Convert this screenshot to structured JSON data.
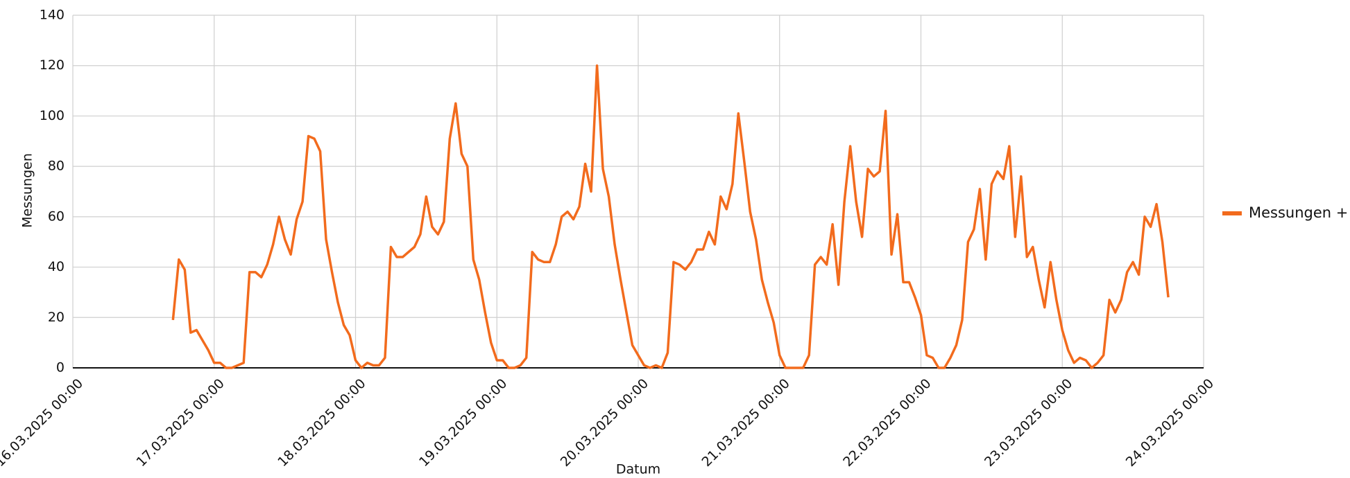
{
  "chart_data": {
    "type": "line",
    "x_label": "Datum",
    "y_label": "Messungen",
    "x": [
      "16.03.2025 17:00",
      "16.03.2025 18:00",
      "16.03.2025 19:00",
      "16.03.2025 20:00",
      "16.03.2025 21:00",
      "16.03.2025 22:00",
      "16.03.2025 23:00",
      "17.03.2025 00:00",
      "17.03.2025 01:00",
      "17.03.2025 02:00",
      "17.03.2025 03:00",
      "17.03.2025 04:00",
      "17.03.2025 05:00",
      "17.03.2025 06:00",
      "17.03.2025 07:00",
      "17.03.2025 08:00",
      "17.03.2025 09:00",
      "17.03.2025 10:00",
      "17.03.2025 11:00",
      "17.03.2025 12:00",
      "17.03.2025 13:00",
      "17.03.2025 14:00",
      "17.03.2025 15:00",
      "17.03.2025 16:00",
      "17.03.2025 17:00",
      "17.03.2025 18:00",
      "17.03.2025 19:00",
      "17.03.2025 20:00",
      "17.03.2025 21:00",
      "17.03.2025 22:00",
      "17.03.2025 23:00",
      "18.03.2025 00:00",
      "18.03.2025 01:00",
      "18.03.2025 02:00",
      "18.03.2025 03:00",
      "18.03.2025 04:00",
      "18.03.2025 05:00",
      "18.03.2025 06:00",
      "18.03.2025 07:00",
      "18.03.2025 08:00",
      "18.03.2025 09:00",
      "18.03.2025 10:00",
      "18.03.2025 11:00",
      "18.03.2025 12:00",
      "18.03.2025 13:00",
      "18.03.2025 14:00",
      "18.03.2025 15:00",
      "18.03.2025 16:00",
      "18.03.2025 17:00",
      "18.03.2025 18:00",
      "18.03.2025 19:00",
      "18.03.2025 20:00",
      "18.03.2025 21:00",
      "18.03.2025 22:00",
      "18.03.2025 23:00",
      "19.03.2025 00:00",
      "19.03.2025 01:00",
      "19.03.2025 02:00",
      "19.03.2025 03:00",
      "19.03.2025 04:00",
      "19.03.2025 05:00",
      "19.03.2025 06:00",
      "19.03.2025 07:00",
      "19.03.2025 08:00",
      "19.03.2025 09:00",
      "19.03.2025 10:00",
      "19.03.2025 11:00",
      "19.03.2025 12:00",
      "19.03.2025 13:00",
      "19.03.2025 14:00",
      "19.03.2025 15:00",
      "19.03.2025 16:00",
      "19.03.2025 17:00",
      "19.03.2025 18:00",
      "19.03.2025 19:00",
      "19.03.2025 20:00",
      "19.03.2025 21:00",
      "19.03.2025 22:00",
      "19.03.2025 23:00",
      "20.03.2025 00:00",
      "20.03.2025 01:00",
      "20.03.2025 02:00",
      "20.03.2025 03:00",
      "20.03.2025 04:00",
      "20.03.2025 05:00",
      "20.03.2025 06:00",
      "20.03.2025 07:00",
      "20.03.2025 08:00",
      "20.03.2025 09:00",
      "20.03.2025 10:00",
      "20.03.2025 11:00",
      "20.03.2025 12:00",
      "20.03.2025 13:00",
      "20.03.2025 14:00",
      "20.03.2025 15:00",
      "20.03.2025 16:00",
      "20.03.2025 17:00",
      "20.03.2025 18:00",
      "20.03.2025 19:00",
      "20.03.2025 20:00",
      "20.03.2025 21:00",
      "20.03.2025 22:00",
      "20.03.2025 23:00",
      "21.03.2025 00:00",
      "21.03.2025 01:00",
      "21.03.2025 02:00",
      "21.03.2025 03:00",
      "21.03.2025 04:00",
      "21.03.2025 05:00",
      "21.03.2025 06:00",
      "21.03.2025 07:00",
      "21.03.2025 08:00",
      "21.03.2025 09:00",
      "21.03.2025 10:00",
      "21.03.2025 11:00",
      "21.03.2025 12:00",
      "21.03.2025 13:00",
      "21.03.2025 14:00",
      "21.03.2025 15:00",
      "21.03.2025 16:00",
      "21.03.2025 17:00",
      "21.03.2025 18:00",
      "21.03.2025 19:00",
      "21.03.2025 20:00",
      "21.03.2025 21:00",
      "21.03.2025 22:00",
      "21.03.2025 23:00",
      "22.03.2025 00:00",
      "22.03.2025 01:00",
      "22.03.2025 02:00",
      "22.03.2025 03:00",
      "22.03.2025 04:00",
      "22.03.2025 05:00",
      "22.03.2025 06:00",
      "22.03.2025 07:00",
      "22.03.2025 08:00",
      "22.03.2025 09:00",
      "22.03.2025 10:00",
      "22.03.2025 11:00",
      "22.03.2025 12:00",
      "22.03.2025 13:00",
      "22.03.2025 14:00",
      "22.03.2025 15:00",
      "22.03.2025 16:00",
      "22.03.2025 17:00",
      "22.03.2025 18:00",
      "22.03.2025 19:00",
      "22.03.2025 20:00",
      "22.03.2025 21:00",
      "22.03.2025 22:00",
      "22.03.2025 23:00",
      "23.03.2025 00:00",
      "23.03.2025 01:00",
      "23.03.2025 02:00",
      "23.03.2025 03:00",
      "23.03.2025 04:00",
      "23.03.2025 05:00",
      "23.03.2025 06:00",
      "23.03.2025 07:00",
      "23.03.2025 08:00",
      "23.03.2025 09:00",
      "23.03.2025 10:00",
      "23.03.2025 11:00",
      "23.03.2025 12:00",
      "23.03.2025 13:00",
      "23.03.2025 14:00",
      "23.03.2025 15:00",
      "23.03.2025 16:00",
      "23.03.2025 17:00",
      "23.03.2025 18:00"
    ],
    "series": [
      {
        "name": "Messungen +",
        "color": "#f26b1d",
        "values": [
          19,
          43,
          39,
          14,
          15,
          11,
          7,
          2,
          2,
          0,
          0,
          1,
          2,
          38,
          38,
          36,
          41,
          49,
          60,
          51,
          45,
          59,
          66,
          92,
          91,
          86,
          51,
          38,
          26,
          17,
          13,
          3,
          0,
          2,
          1,
          1,
          4,
          48,
          44,
          44,
          46,
          48,
          53,
          68,
          56,
          53,
          58,
          91,
          105,
          85,
          80,
          43,
          35,
          22,
          10,
          3,
          3,
          0,
          0,
          1,
          4,
          46,
          43,
          42,
          42,
          49,
          60,
          62,
          59,
          64,
          81,
          70,
          120,
          79,
          68,
          49,
          35,
          22,
          9,
          5,
          1,
          0,
          1,
          0,
          6,
          42,
          41,
          39,
          42,
          47,
          47,
          54,
          49,
          68,
          63,
          73,
          101,
          82,
          62,
          51,
          35,
          26,
          18,
          5,
          0,
          0,
          0,
          0,
          5,
          41,
          44,
          41,
          57,
          33,
          66,
          88,
          66,
          52,
          79,
          76,
          78,
          102,
          45,
          61,
          34,
          34,
          28,
          21,
          5,
          4,
          0,
          0,
          4,
          9,
          19,
          50,
          55,
          71,
          43,
          73,
          78,
          75,
          88,
          52,
          76,
          44,
          48,
          35,
          24,
          42,
          27,
          15,
          7,
          2,
          4,
          3,
          0,
          2,
          5,
          27,
          22,
          27,
          38,
          42,
          37,
          60,
          56,
          65,
          50,
          28
        ]
      }
    ],
    "xlim": [
      "16.03.2025 00:00",
      "24.03.2025 00:00"
    ],
    "xticks": [
      "16.03.2025 00:00",
      "17.03.2025 00:00",
      "18.03.2025 00:00",
      "19.03.2025 00:00",
      "20.03.2025 00:00",
      "21.03.2025 00:00",
      "22.03.2025 00:00",
      "23.03.2025 00:00",
      "24.03.2025 00:00"
    ],
    "ylim": [
      0,
      140
    ],
    "yticks": [
      0,
      20,
      40,
      60,
      80,
      100,
      120,
      140
    ],
    "grid": true,
    "legend": "right"
  }
}
